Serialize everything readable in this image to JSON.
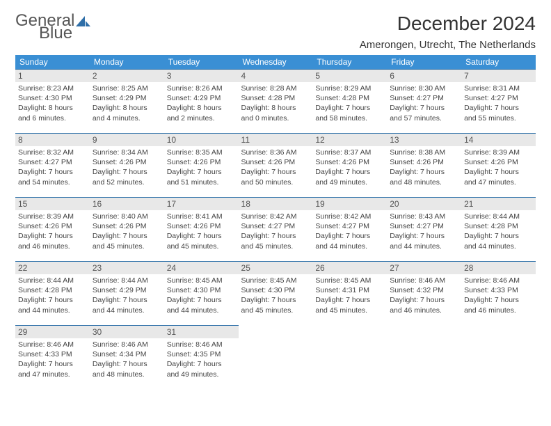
{
  "logo": {
    "part1": "General",
    "part2": "Blue"
  },
  "title": "December 2024",
  "location": "Amerongen, Utrecht, The Netherlands",
  "colors": {
    "header_bg": "#3a8fd4",
    "header_text": "#ffffff",
    "daynum_bg": "#e8e8e8",
    "border": "#2b6fa8",
    "logo_blue": "#3a7fbf"
  },
  "weekdays": [
    "Sunday",
    "Monday",
    "Tuesday",
    "Wednesday",
    "Thursday",
    "Friday",
    "Saturday"
  ],
  "days": [
    {
      "n": "1",
      "sr": "8:23 AM",
      "ss": "4:30 PM",
      "dl": "8 hours and 6 minutes."
    },
    {
      "n": "2",
      "sr": "8:25 AM",
      "ss": "4:29 PM",
      "dl": "8 hours and 4 minutes."
    },
    {
      "n": "3",
      "sr": "8:26 AM",
      "ss": "4:29 PM",
      "dl": "8 hours and 2 minutes."
    },
    {
      "n": "4",
      "sr": "8:28 AM",
      "ss": "4:28 PM",
      "dl": "8 hours and 0 minutes."
    },
    {
      "n": "5",
      "sr": "8:29 AM",
      "ss": "4:28 PM",
      "dl": "7 hours and 58 minutes."
    },
    {
      "n": "6",
      "sr": "8:30 AM",
      "ss": "4:27 PM",
      "dl": "7 hours and 57 minutes."
    },
    {
      "n": "7",
      "sr": "8:31 AM",
      "ss": "4:27 PM",
      "dl": "7 hours and 55 minutes."
    },
    {
      "n": "8",
      "sr": "8:32 AM",
      "ss": "4:27 PM",
      "dl": "7 hours and 54 minutes."
    },
    {
      "n": "9",
      "sr": "8:34 AM",
      "ss": "4:26 PM",
      "dl": "7 hours and 52 minutes."
    },
    {
      "n": "10",
      "sr": "8:35 AM",
      "ss": "4:26 PM",
      "dl": "7 hours and 51 minutes."
    },
    {
      "n": "11",
      "sr": "8:36 AM",
      "ss": "4:26 PM",
      "dl": "7 hours and 50 minutes."
    },
    {
      "n": "12",
      "sr": "8:37 AM",
      "ss": "4:26 PM",
      "dl": "7 hours and 49 minutes."
    },
    {
      "n": "13",
      "sr": "8:38 AM",
      "ss": "4:26 PM",
      "dl": "7 hours and 48 minutes."
    },
    {
      "n": "14",
      "sr": "8:39 AM",
      "ss": "4:26 PM",
      "dl": "7 hours and 47 minutes."
    },
    {
      "n": "15",
      "sr": "8:39 AM",
      "ss": "4:26 PM",
      "dl": "7 hours and 46 minutes."
    },
    {
      "n": "16",
      "sr": "8:40 AM",
      "ss": "4:26 PM",
      "dl": "7 hours and 45 minutes."
    },
    {
      "n": "17",
      "sr": "8:41 AM",
      "ss": "4:26 PM",
      "dl": "7 hours and 45 minutes."
    },
    {
      "n": "18",
      "sr": "8:42 AM",
      "ss": "4:27 PM",
      "dl": "7 hours and 45 minutes."
    },
    {
      "n": "19",
      "sr": "8:42 AM",
      "ss": "4:27 PM",
      "dl": "7 hours and 44 minutes."
    },
    {
      "n": "20",
      "sr": "8:43 AM",
      "ss": "4:27 PM",
      "dl": "7 hours and 44 minutes."
    },
    {
      "n": "21",
      "sr": "8:44 AM",
      "ss": "4:28 PM",
      "dl": "7 hours and 44 minutes."
    },
    {
      "n": "22",
      "sr": "8:44 AM",
      "ss": "4:28 PM",
      "dl": "7 hours and 44 minutes."
    },
    {
      "n": "23",
      "sr": "8:44 AM",
      "ss": "4:29 PM",
      "dl": "7 hours and 44 minutes."
    },
    {
      "n": "24",
      "sr": "8:45 AM",
      "ss": "4:30 PM",
      "dl": "7 hours and 44 minutes."
    },
    {
      "n": "25",
      "sr": "8:45 AM",
      "ss": "4:30 PM",
      "dl": "7 hours and 45 minutes."
    },
    {
      "n": "26",
      "sr": "8:45 AM",
      "ss": "4:31 PM",
      "dl": "7 hours and 45 minutes."
    },
    {
      "n": "27",
      "sr": "8:46 AM",
      "ss": "4:32 PM",
      "dl": "7 hours and 46 minutes."
    },
    {
      "n": "28",
      "sr": "8:46 AM",
      "ss": "4:33 PM",
      "dl": "7 hours and 46 minutes."
    },
    {
      "n": "29",
      "sr": "8:46 AM",
      "ss": "4:33 PM",
      "dl": "7 hours and 47 minutes."
    },
    {
      "n": "30",
      "sr": "8:46 AM",
      "ss": "4:34 PM",
      "dl": "7 hours and 48 minutes."
    },
    {
      "n": "31",
      "sr": "8:46 AM",
      "ss": "4:35 PM",
      "dl": "7 hours and 49 minutes."
    }
  ],
  "labels": {
    "sunrise": "Sunrise: ",
    "sunset": "Sunset: ",
    "daylight": "Daylight: "
  }
}
